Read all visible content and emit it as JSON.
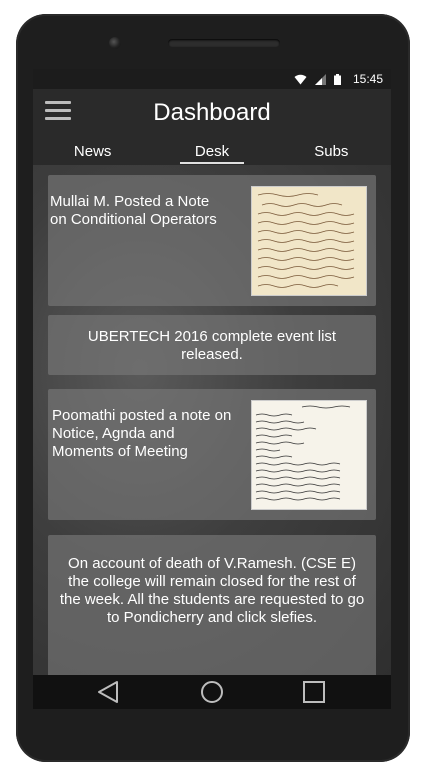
{
  "status": {
    "time": "15:45"
  },
  "app": {
    "title": "Dashboard"
  },
  "tabs": [
    {
      "label": "News",
      "active": false
    },
    {
      "label": "Desk",
      "active": true
    },
    {
      "label": "Subs",
      "active": false
    }
  ],
  "feed": {
    "cards": [
      {
        "text": "Mullai M. Posted a Note on   Conditional Operators",
        "thumbnail": "handwritten-note-image"
      },
      {
        "text": "UBERTECH 2016 complete event list released."
      },
      {
        "text": "Poomathi posted a note on Notice, Agnda and Moments of Meeting",
        "thumbnail": "handwritten-note-image"
      },
      {
        "text": "On account of death of V.Ramesh. (CSE E) the college will remain closed for the rest of the week. All the students are requested to go to Pondicherry and click slefies."
      }
    ]
  },
  "navigation": {
    "back": "back-icon",
    "home": "home-icon",
    "recents": "recents-icon"
  }
}
